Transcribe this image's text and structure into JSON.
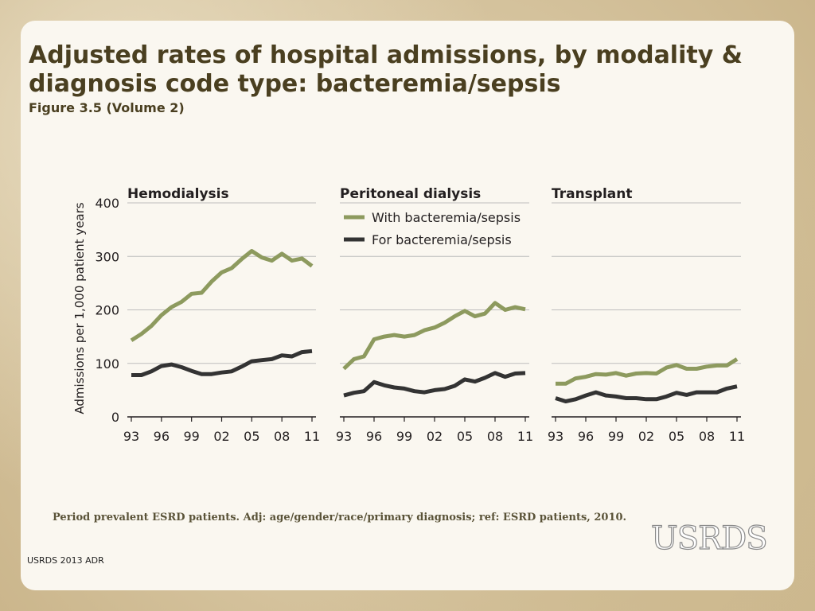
{
  "slide": {
    "title": "Adjusted rates of hospital admissions, by modality & diagnosis code type: bacteremia/sepsis",
    "subtitle": "Figure 3.5 (Volume 2)",
    "footnote": "Period prevalent ESRD patients. Adj: age/gender/race/primary diagnosis; ref: ESRD patients, 2010.",
    "footer": "USRDS 2013 ADR",
    "logo_text": "USRDS"
  },
  "chart_data": {
    "type": "line",
    "ylabel": "Admissions per 1,000 patient years",
    "ylim": [
      0,
      400
    ],
    "yticks": [
      0,
      100,
      200,
      300,
      400
    ],
    "x": [
      1993,
      1994,
      1995,
      1996,
      1997,
      1998,
      1999,
      2000,
      2001,
      2002,
      2003,
      2004,
      2005,
      2006,
      2007,
      2008,
      2009,
      2010,
      2011
    ],
    "xtick_labels": [
      "93",
      "96",
      "99",
      "02",
      "05",
      "08",
      "11"
    ],
    "xtick_years": [
      1993,
      1996,
      1999,
      2002,
      2005,
      2008,
      2011
    ],
    "legend": {
      "placement": "top, inside Peritoneal dialysis panel"
    },
    "colors": {
      "with": "#8d9a5e",
      "for": "#333333"
    },
    "series_names": {
      "with": "With bacteremia/sepsis",
      "for": "For bacteremia/sepsis"
    },
    "panels": [
      {
        "title": "Hemodialysis",
        "with": [
          143,
          155,
          170,
          190,
          205,
          215,
          230,
          232,
          253,
          270,
          278,
          295,
          310,
          298,
          292,
          305,
          292,
          296,
          282
        ],
        "for": [
          78,
          78,
          85,
          95,
          98,
          93,
          86,
          80,
          80,
          83,
          85,
          94,
          104,
          106,
          108,
          115,
          113,
          121,
          123
        ]
      },
      {
        "title": "Peritoneal dialysis",
        "with": [
          90,
          108,
          113,
          145,
          150,
          153,
          150,
          153,
          162,
          167,
          176,
          188,
          198,
          188,
          193,
          213,
          200,
          205,
          201
        ],
        "for": [
          40,
          45,
          48,
          65,
          59,
          55,
          53,
          48,
          46,
          50,
          52,
          58,
          70,
          66,
          73,
          82,
          75,
          81,
          82
        ]
      },
      {
        "title": "Transplant",
        "with": [
          62,
          62,
          72,
          75,
          80,
          79,
          82,
          77,
          81,
          82,
          81,
          92,
          97,
          90,
          90,
          94,
          96,
          96,
          108
        ],
        "for": [
          35,
          29,
          33,
          40,
          46,
          40,
          38,
          35,
          35,
          33,
          33,
          38,
          45,
          41,
          46,
          46,
          46,
          53,
          57
        ]
      }
    ]
  }
}
